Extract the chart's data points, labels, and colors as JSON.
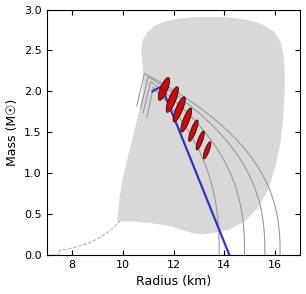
{
  "xlabel": "Radius (km)",
  "ylabel": "Mass (M☉)",
  "xlim": [
    7,
    17
  ],
  "ylim": [
    0.0,
    3.0
  ],
  "xticks": [
    8,
    10,
    12,
    14,
    16
  ],
  "yticks": [
    0.0,
    0.5,
    1.0,
    1.5,
    2.0,
    2.5,
    3.0
  ],
  "blue_curve_color": "#3333cc",
  "ellipse_face_color": "#cc0000",
  "ellipse_edge_color": "#330000",
  "background_color": "#ffffff",
  "ellipse_centers": [
    [
      11.62,
      2.03
    ],
    [
      11.95,
      1.9
    ],
    [
      12.22,
      1.78
    ],
    [
      12.5,
      1.65
    ],
    [
      12.78,
      1.52
    ],
    [
      13.05,
      1.4
    ],
    [
      13.32,
      1.28
    ]
  ],
  "ellipse_widths": [
    0.5,
    0.55,
    0.55,
    0.5,
    0.44,
    0.38,
    0.35
  ],
  "ellipse_heights": [
    0.17,
    0.17,
    0.16,
    0.15,
    0.13,
    0.12,
    0.11
  ],
  "ellipse_angles": [
    28,
    30,
    30,
    32,
    33,
    33,
    33
  ]
}
